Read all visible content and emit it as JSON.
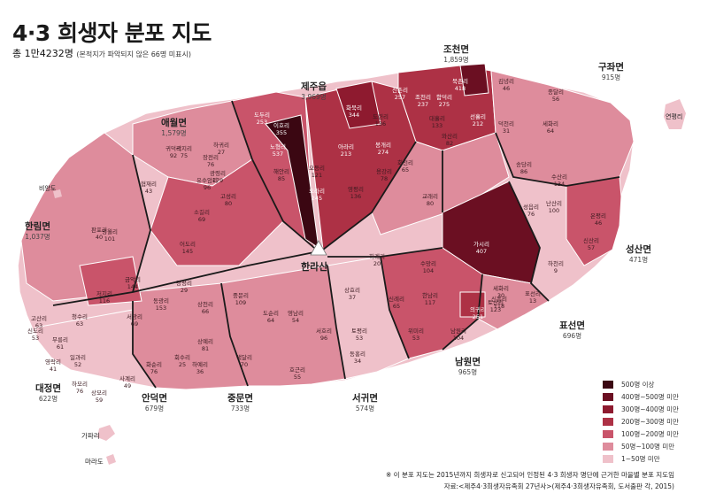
{
  "header": {
    "title": "4·3 희생자 분포 지도",
    "total": "총 1만4232명",
    "total_note": "(본적지가 파악되지 않은 66명 미표시)"
  },
  "peak": "한라산",
  "regions": {
    "jeju": {
      "name": "제주읍",
      "count": "3,969명"
    },
    "jocheon": {
      "name": "조천면",
      "count": "1,859명"
    },
    "gujwa": {
      "name": "구좌면",
      "count": "915명"
    },
    "aewol": {
      "name": "애월면",
      "count": "1,579명"
    },
    "hallim": {
      "name": "한림면",
      "count": "1,037명"
    },
    "seongsan": {
      "name": "성산면",
      "count": "471명"
    },
    "pyoseon": {
      "name": "표선면",
      "count": "696명"
    },
    "namwon": {
      "name": "남원면",
      "count": "965명"
    },
    "seogwi": {
      "name": "서귀면",
      "count": "574명"
    },
    "jungmun": {
      "name": "중문면",
      "count": "733명"
    },
    "andeok": {
      "name": "안덕면",
      "count": "679명"
    },
    "daejeong": {
      "name": "대정면",
      "count": "622명"
    }
  },
  "islands": {
    "gapa": "가파리",
    "mara": "마라도",
    "bigyang": "비양도",
    "udo": "연평리"
  },
  "villages": [
    {
      "name": "신촌리",
      "count": "257"
    },
    {
      "name": "북촌리",
      "count": "418"
    },
    {
      "name": "조천리",
      "count": "237"
    },
    {
      "name": "함덕리",
      "count": "275"
    },
    {
      "name": "선흘리",
      "count": "212"
    },
    {
      "name": "대흘리",
      "count": "133"
    },
    {
      "name": "와산리",
      "count": "82"
    },
    {
      "name": "노형리",
      "count": "537"
    },
    {
      "name": "도두리",
      "count": "253"
    },
    {
      "name": "이호리",
      "count": "355"
    },
    {
      "name": "오라리",
      "count": "245"
    },
    {
      "name": "아라리",
      "count": "213"
    },
    {
      "name": "봉개리",
      "count": "274"
    },
    {
      "name": "화북리",
      "count": "344"
    },
    {
      "name": "도련리",
      "count": "136"
    },
    {
      "name": "회천리",
      "count": "65"
    },
    {
      "name": "용강리",
      "count": "78"
    },
    {
      "name": "영평리",
      "count": "136"
    },
    {
      "name": "해안리",
      "count": "85"
    },
    {
      "name": "오등리",
      "count": "121"
    },
    {
      "name": "가시리",
      "count": "407"
    },
    {
      "name": "교래리",
      "count": "80"
    },
    {
      "name": "송당리",
      "count": "86"
    },
    {
      "name": "덕천리",
      "count": "31"
    },
    {
      "name": "김녕리",
      "count": "46"
    },
    {
      "name": "세화리",
      "count": "64"
    },
    {
      "name": "종달리",
      "count": "56"
    },
    {
      "name": "수산리",
      "count": "134"
    },
    {
      "name": "난산리",
      "count": "100"
    },
    {
      "name": "성읍리",
      "count": "76"
    },
    {
      "name": "신산리",
      "count": "57"
    },
    {
      "name": "온평리",
      "count": "46"
    },
    {
      "name": "수망리",
      "count": "104"
    },
    {
      "name": "한남리",
      "count": "117"
    },
    {
      "name": "의귀리",
      "count": "251"
    },
    {
      "name": "신흥리",
      "count": "118"
    },
    {
      "name": "남원리",
      "count": "104"
    },
    {
      "name": "위미리",
      "count": "53"
    },
    {
      "name": "하례리",
      "count": "20"
    },
    {
      "name": "상효리",
      "count": "37"
    },
    {
      "name": "신례리",
      "count": "65"
    },
    {
      "name": "토평리",
      "count": "53"
    },
    {
      "name": "동홍리",
      "count": "34"
    },
    {
      "name": "서호리",
      "count": "96"
    },
    {
      "name": "도순리",
      "count": "64"
    },
    {
      "name": "중문리",
      "count": "109"
    },
    {
      "name": "상천리",
      "count": "66"
    },
    {
      "name": "광평리",
      "count": "29"
    },
    {
      "name": "동광리",
      "count": "153"
    },
    {
      "name": "서광리",
      "count": "69"
    },
    {
      "name": "화순리",
      "count": "76"
    },
    {
      "name": "사계리",
      "count": "49"
    },
    {
      "name": "상모리",
      "count": "59"
    },
    {
      "name": "하모리",
      "count": "76"
    },
    {
      "name": "저지리",
      "count": "116"
    },
    {
      "name": "청수리",
      "count": "63"
    },
    {
      "name": "금악리",
      "count": "144"
    },
    {
      "name": "명월리",
      "count": "101"
    },
    {
      "name": "어도리",
      "count": "145"
    },
    {
      "name": "소길리",
      "count": "69"
    },
    {
      "name": "하귀리",
      "count": "27"
    },
    {
      "name": "광령리",
      "count": "179"
    },
    {
      "name": "고성리",
      "count": "80"
    },
    {
      "name": "유수암리",
      "count": "96"
    },
    {
      "name": "장전리",
      "count": "76"
    },
    {
      "name": "곽지리",
      "count": "75"
    },
    {
      "name": "귀덕리",
      "count": "92"
    },
    {
      "name": "협재리",
      "count": "43"
    },
    {
      "name": "판포리",
      "count": "40"
    },
    {
      "name": "고산리",
      "count": "63"
    },
    {
      "name": "신도리",
      "count": "53"
    },
    {
      "name": "무릉리",
      "count": "61"
    },
    {
      "name": "영락리",
      "count": "41"
    },
    {
      "name": "일과리",
      "count": "52"
    },
    {
      "name": "상예리",
      "count": "81"
    },
    {
      "name": "하예리",
      "count": "36"
    },
    {
      "name": "회수리",
      "count": "25"
    },
    {
      "name": "색달리",
      "count": "70"
    },
    {
      "name": "영남리",
      "count": "54"
    },
    {
      "name": "호근리",
      "count": "55"
    },
    {
      "name": "표선리",
      "count": "13"
    },
    {
      "name": "세화리",
      "count": "30"
    },
    {
      "name": "하천리",
      "count": "9"
    },
    {
      "name": "토산리",
      "count": "123"
    }
  ],
  "legend": {
    "items": [
      {
        "label": "500명 이상",
        "color": "#3b0712"
      },
      {
        "label": "400명~500명 미만",
        "color": "#6b0f22"
      },
      {
        "label": "300명~400명 미만",
        "color": "#8e1a2f"
      },
      {
        "label": "200명~300명 미만",
        "color": "#ad3145"
      },
      {
        "label": "100명~200명 미만",
        "color": "#c9546a"
      },
      {
        "label": "50명~100명 미만",
        "color": "#de8c9c"
      },
      {
        "label": "1~50명 미만",
        "color": "#efc1ca"
      }
    ]
  },
  "footnote": {
    "line1": "※ 이 분포 지도는 2015년까지 희생자로 신고되어 인정된 4·3 희생자 명단에 근거한 마을별 분포 지도임",
    "line2": "자료:<제주4·3희생자유족회 27년사>(제주4·3희생자유족회, 도서출판 각, 2015)"
  }
}
